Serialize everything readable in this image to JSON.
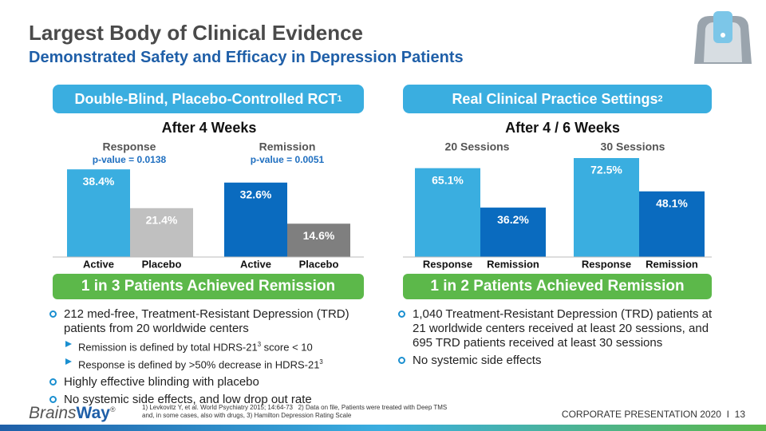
{
  "title": "Largest Body of Clinical Evidence",
  "subtitle": "Demonstrated Safety and Efficacy in Depression Patients",
  "panels": [
    {
      "header": {
        "text": "Double-Blind, Placebo-Controlled RCT",
        "sup": "1"
      },
      "banner": "1 in 3 Patients Achieved Remission",
      "bullets": [
        {
          "text": "212 med-free, Treatment-Resistant Depression (TRD) patients from 20 worldwide centers",
          "sub": [
            {
              "text": "Remission is defined by total HDRS-21",
              "sup": "3",
              "after": " score < 10"
            },
            {
              "text": "Response is defined by >50% decrease in HDRS-21",
              "sup": "3"
            }
          ]
        },
        {
          "text": "Highly effective blinding with placebo"
        },
        {
          "text": "No systemic side effects, and low drop out rate"
        }
      ]
    },
    {
      "header": {
        "text": "Real Clinical Practice Settings",
        "sup": "2"
      },
      "banner": "1 in 2 Patients Achieved Remission",
      "bullets": [
        {
          "text": "1,040 Treatment-Resistant Depression (TRD) patients at 21 worldwide centers received at least 20 sessions, and 695 TRD patients received at least 30 sessions"
        },
        {
          "text": "No systemic side effects"
        }
      ]
    }
  ],
  "chart_data": [
    {
      "type": "bar",
      "title": "After 4 Weeks",
      "groups": [
        {
          "name": "Response",
          "note": "p-value = 0.0138"
        },
        {
          "name": "Remission",
          "note": "p-value = 0.0051"
        }
      ],
      "categories": [
        "Active",
        "Placebo",
        "Active",
        "Placebo"
      ],
      "values": [
        38.4,
        21.4,
        32.6,
        14.6
      ],
      "value_labels": [
        "38.4%",
        "21.4%",
        "32.6%",
        "14.6%"
      ],
      "colors": [
        "#3aaee0",
        "#c0c0c0",
        "#0a6bbf",
        "#7f7f7f"
      ]
    },
    {
      "type": "bar",
      "title": "After 4 / 6 Weeks",
      "groups": [
        {
          "name": "20 Sessions"
        },
        {
          "name": "30 Sessions"
        }
      ],
      "categories": [
        "Response",
        "Remission",
        "Response",
        "Remission"
      ],
      "values": [
        65.1,
        36.2,
        72.5,
        48.1
      ],
      "value_labels": [
        "65.1%",
        "36.2%",
        "72.5%",
        "48.1%"
      ],
      "colors": [
        "#3aaee0",
        "#0a6bbf",
        "#3aaee0",
        "#0a6bbf"
      ]
    }
  ],
  "footnotes": [
    "1) Levkovitz Y, et al. World Psychiatry 2015; 14:64-73   2) Data on file, Patients were treated with Deep TMS",
    "and, in some cases, also with drugs, 3) Hamilton Depression Rating Scale"
  ],
  "logo": {
    "a": "Brains",
    "b": "Way",
    "mark": "®"
  },
  "footer": {
    "text": "CORPORATE PRESENTATION 2020",
    "sep": "I",
    "page": "13"
  }
}
